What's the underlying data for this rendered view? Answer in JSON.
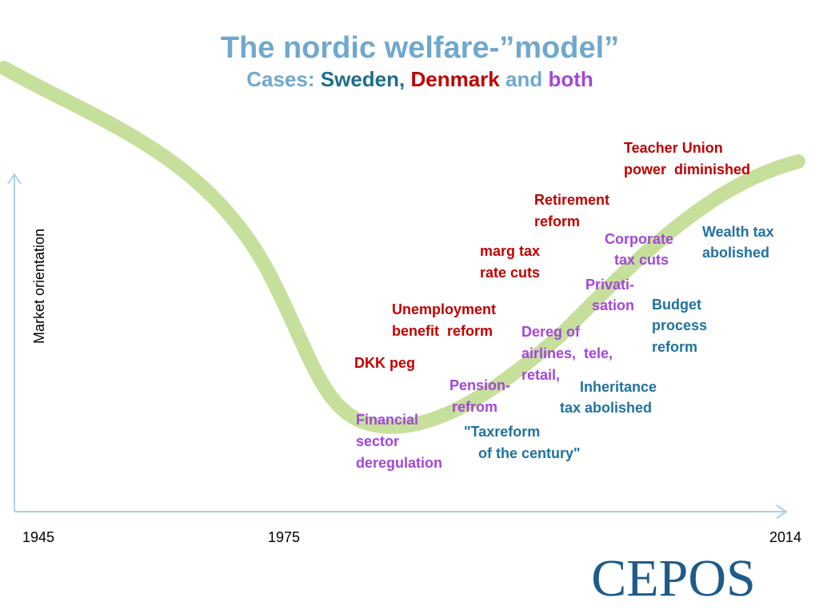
{
  "title": "The nordic welfare-”model”",
  "subtitle": {
    "prefix": "Cases:",
    "sweden": "Sweden,",
    "denmark": "Denmark",
    "joiner": "and",
    "both": "both"
  },
  "y_axis_label": "Market orientation",
  "x_axis_labels": [
    "1945",
    "1975",
    "2014"
  ],
  "annotations": {
    "denmark": [
      [
        "Teacher Union",
        "power  diminished"
      ],
      [
        "Retirement",
        "reform"
      ],
      [
        "marg tax",
        "rate cuts"
      ],
      [
        "Unemployment",
        "benefit  reform"
      ],
      [
        "DKK peg"
      ]
    ],
    "both": [
      [
        "Corporate",
        "tax cuts"
      ],
      [
        "Privati-",
        "sation"
      ],
      [
        "Dereg of",
        "airlines,  tele,",
        "retail,"
      ],
      [
        "Pension-",
        "refrom"
      ],
      [
        "Financial",
        "sector",
        "deregulation"
      ]
    ],
    "sweden": [
      [
        "Wealth tax",
        "abolished"
      ],
      [
        "Budget",
        "process",
        "reform"
      ],
      [
        "Inheritance",
        "tax abolished"
      ],
      [
        "\"Taxreform",
        "of the century\""
      ]
    ]
  },
  "logo": "CEPOS"
}
